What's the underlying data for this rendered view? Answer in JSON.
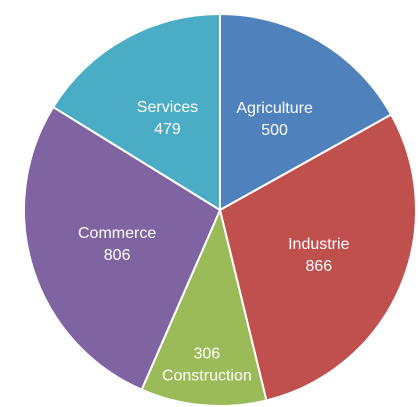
{
  "chart_data": {
    "type": "pie",
    "categories": [
      "Agriculture",
      "Industrie",
      "Construction",
      "Commerce",
      "Services"
    ],
    "values": [
      500,
      866,
      306,
      806,
      479
    ],
    "colors": [
      "#4f81bd",
      "#c0504d",
      "#9bbb59",
      "#8064a2",
      "#4bacc6"
    ],
    "title": "",
    "legend": "none",
    "data_labels": "inside"
  }
}
